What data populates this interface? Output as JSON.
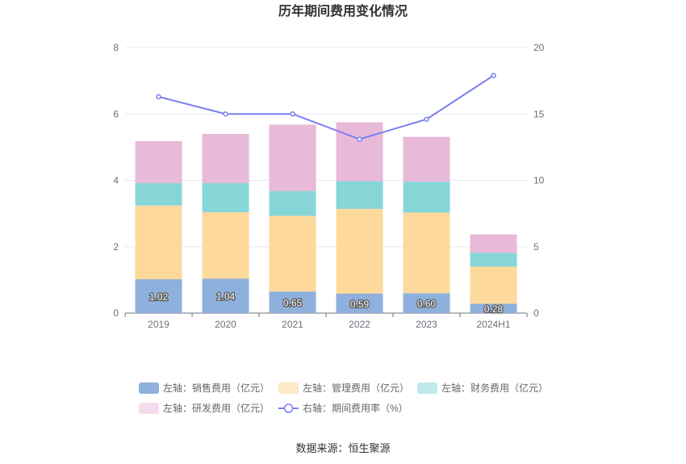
{
  "chart_data": {
    "type": "bar",
    "title": "历年期间费用变化情况",
    "categories": [
      "2019",
      "2020",
      "2021",
      "2022",
      "2023",
      "2024H1"
    ],
    "stacked": true,
    "left_axis": {
      "ylim": [
        0,
        8
      ],
      "ticks": [
        "0",
        "2",
        "4",
        "6",
        "8"
      ]
    },
    "right_axis": {
      "ylim": [
        0,
        20
      ],
      "ticks": [
        "0",
        "5",
        "10",
        "15",
        "20"
      ]
    },
    "series": [
      {
        "name": "左轴：销售费用（亿元）",
        "axis": "left",
        "type": "bar",
        "color": "#8eb0dc",
        "values": [
          1.02,
          1.04,
          0.65,
          0.59,
          0.6,
          0.28
        ],
        "labels": [
          "1.02",
          "1.04",
          "0.65",
          "0.59",
          "0.60",
          "0.28"
        ]
      },
      {
        "name": "左轴：管理费用（亿元）",
        "axis": "left",
        "type": "bar",
        "color": "#fdd99b",
        "values": [
          2.22,
          2.0,
          2.28,
          2.55,
          2.43,
          1.12
        ]
      },
      {
        "name": "左轴：财务费用（亿元）",
        "axis": "left",
        "type": "bar",
        "color": "#86d6d8",
        "values": [
          0.68,
          0.88,
          0.75,
          0.84,
          0.93,
          0.42
        ]
      },
      {
        "name": "左轴：研发费用（亿元）",
        "axis": "left",
        "type": "bar",
        "color": "#e8b9d8",
        "values": [
          1.26,
          1.48,
          2.0,
          1.77,
          1.35,
          0.55
        ]
      },
      {
        "name": "右轴：期间费用率（%）",
        "axis": "right",
        "type": "line",
        "color": "#7a7ff0",
        "values": [
          16.3,
          15.0,
          15.0,
          13.1,
          14.6,
          17.9
        ]
      }
    ],
    "legend_position": "bottom",
    "grid": true
  },
  "legend": [
    {
      "label": "左轴：销售费用（亿元）",
      "color": "#8eb0dc",
      "kind": "rect"
    },
    {
      "label": "左轴：管理费用（亿元）",
      "color": "#fde9c6",
      "kind": "rect"
    },
    {
      "label": "左轴：财务费用（亿元）",
      "color": "#bfe9ea",
      "kind": "rect"
    },
    {
      "label": "左轴：研发费用（亿元）",
      "color": "#f4dcee",
      "kind": "rect"
    },
    {
      "label": "右轴：期间费用率（%）",
      "color": "#7a7ff0",
      "kind": "line"
    }
  ],
  "source": "数据来源：恒生聚源"
}
